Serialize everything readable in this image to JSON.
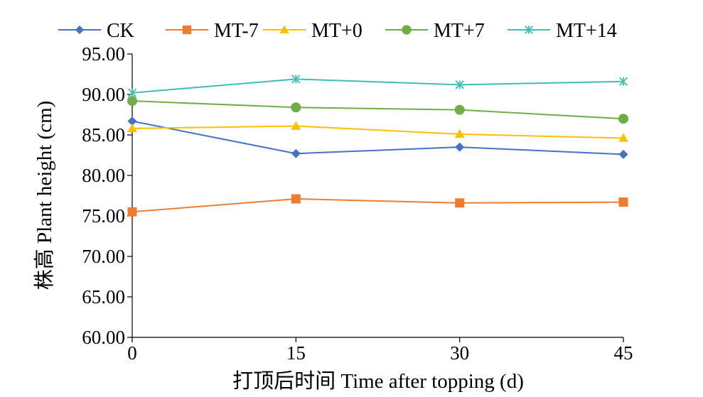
{
  "chart_data": {
    "type": "line",
    "title": "",
    "xlabel": "打顶后时间 Time after topping (d)",
    "ylabel": "株高 Plant height (cm)",
    "categories": [
      "0",
      "15",
      "30",
      "45"
    ],
    "ylim": [
      60,
      95
    ],
    "ytick_step": 5,
    "ytick_labels": [
      "60.00",
      "65.00",
      "70.00",
      "75.00",
      "80.00",
      "85.00",
      "90.00",
      "95.00"
    ],
    "grid": false,
    "legend_position": "top",
    "series": [
      {
        "name": "CK",
        "values": [
          86.7,
          82.7,
          83.5,
          82.6
        ],
        "color": "#4472C4",
        "marker": "diamond"
      },
      {
        "name": "MT-7",
        "values": [
          75.5,
          77.1,
          76.6,
          76.7
        ],
        "color": "#ED7D31",
        "marker": "square"
      },
      {
        "name": "MT+0",
        "values": [
          85.8,
          86.1,
          85.1,
          84.6
        ],
        "color": "#FFC000",
        "marker": "triangle"
      },
      {
        "name": "MT+7",
        "values": [
          89.2,
          88.4,
          88.1,
          87.0
        ],
        "color": "#70AD47",
        "marker": "circle"
      },
      {
        "name": "MT+14",
        "values": [
          90.2,
          91.9,
          91.2,
          91.6
        ],
        "color": "#3CBFB4",
        "marker": "star"
      }
    ]
  }
}
